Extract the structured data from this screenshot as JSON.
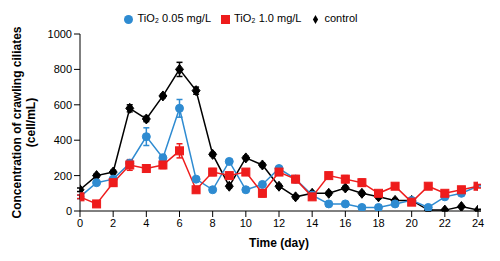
{
  "chart_data": {
    "type": "line",
    "x_label": "Time (day)",
    "y_label": "Concentration of crawling ciliates (cell/mL)",
    "x": [
      0,
      1,
      2,
      3,
      4,
      5,
      6,
      7,
      8,
      9,
      10,
      11,
      12,
      13,
      14,
      15,
      16,
      17,
      18,
      19,
      20,
      21,
      22,
      23,
      24
    ],
    "xlim": [
      0,
      24
    ],
    "xticks": [
      0,
      2,
      4,
      6,
      8,
      10,
      12,
      14,
      16,
      18,
      20,
      22,
      24
    ],
    "ylim": [
      0,
      1000
    ],
    "yticks": [
      0,
      200,
      400,
      600,
      800,
      1000
    ],
    "legend": "top",
    "series": [
      {
        "name": "control",
        "color": "#000000",
        "marker": "diamond",
        "values": [
          120,
          200,
          220,
          580,
          520,
          650,
          800,
          680,
          320,
          140,
          300,
          260,
          140,
          80,
          100,
          100,
          130,
          100,
          80,
          60,
          60,
          5,
          5,
          25,
          5
        ],
        "errors": [
          10,
          10,
          10,
          20,
          15,
          10,
          40,
          20,
          10,
          10,
          10,
          10,
          10,
          10,
          10,
          10,
          10,
          10,
          10,
          10,
          10,
          5,
          5,
          5,
          5
        ]
      },
      {
        "name": "TiO₂ 0.05 mg/L",
        "color": "#2e8bd1",
        "marker": "circle",
        "values": [
          80,
          160,
          180,
          270,
          420,
          300,
          580,
          180,
          120,
          280,
          120,
          150,
          240,
          180,
          90,
          40,
          40,
          20,
          20,
          40,
          60,
          20,
          80,
          100,
          140
        ],
        "errors": [
          10,
          10,
          10,
          20,
          50,
          20,
          50,
          10,
          10,
          10,
          10,
          10,
          10,
          10,
          10,
          5,
          5,
          5,
          5,
          5,
          5,
          5,
          5,
          5,
          5
        ]
      },
      {
        "name": "TiO₂ 1.0 mg/L",
        "color": "#ee1c1c",
        "marker": "square",
        "values": [
          80,
          40,
          160,
          260,
          240,
          260,
          340,
          120,
          220,
          200,
          220,
          100,
          220,
          180,
          80,
          200,
          180,
          160,
          100,
          140,
          50,
          140,
          100,
          120,
          140
        ],
        "errors": [
          10,
          5,
          20,
          30,
          15,
          20,
          40,
          15,
          20,
          10,
          10,
          20,
          10,
          20,
          10,
          10,
          20,
          20,
          10,
          10,
          10,
          10,
          10,
          10,
          10
        ]
      }
    ]
  }
}
